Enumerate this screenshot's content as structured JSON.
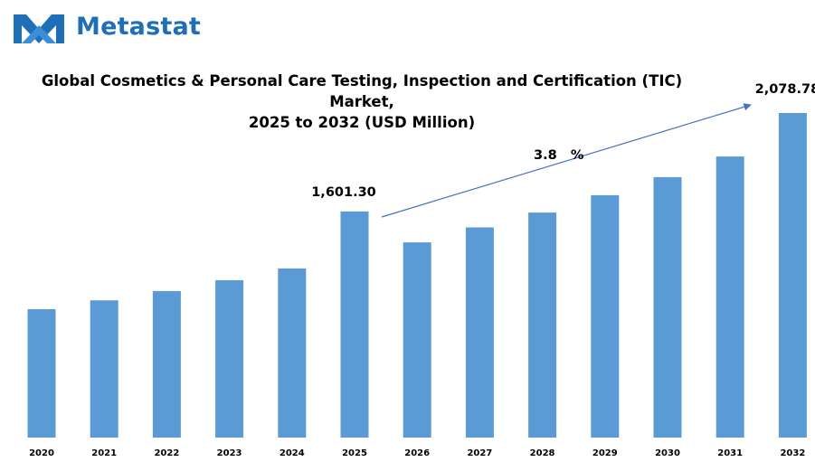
{
  "brand": {
    "name": "Metastat",
    "color": "#1f6fb8"
  },
  "title": {
    "line1": "Global Cosmetics & Personal Care Testing, Inspection and Certification (TIC)",
    "line2": "Market,",
    "line3": "2025 to 2032 (USD Million)"
  },
  "colors": {
    "bar": "#5b9bd5",
    "arrow": "#4472c4"
  },
  "chart_data": {
    "type": "bar",
    "categories": [
      "2020",
      "2021",
      "2022",
      "2023",
      "2024",
      "2025",
      "2026",
      "2027",
      "2028",
      "2029",
      "2030",
      "2031",
      "2032"
    ],
    "values": [
      1127.0,
      1170.0,
      1215.0,
      1268.0,
      1325.0,
      1601.3,
      1451.0,
      1524.0,
      1596.0,
      1680.0,
      1768.0,
      1868.0,
      2078.78
    ],
    "data_labels": [
      {
        "category": "2025",
        "text": "1,601.30"
      },
      {
        "category": "2032",
        "text": "2,078.78"
      }
    ],
    "annotation": {
      "text": "3.8   %",
      "from": "2025",
      "to": "2032"
    },
    "xlabel": "",
    "ylabel": "",
    "grid": false,
    "legend": "none"
  }
}
